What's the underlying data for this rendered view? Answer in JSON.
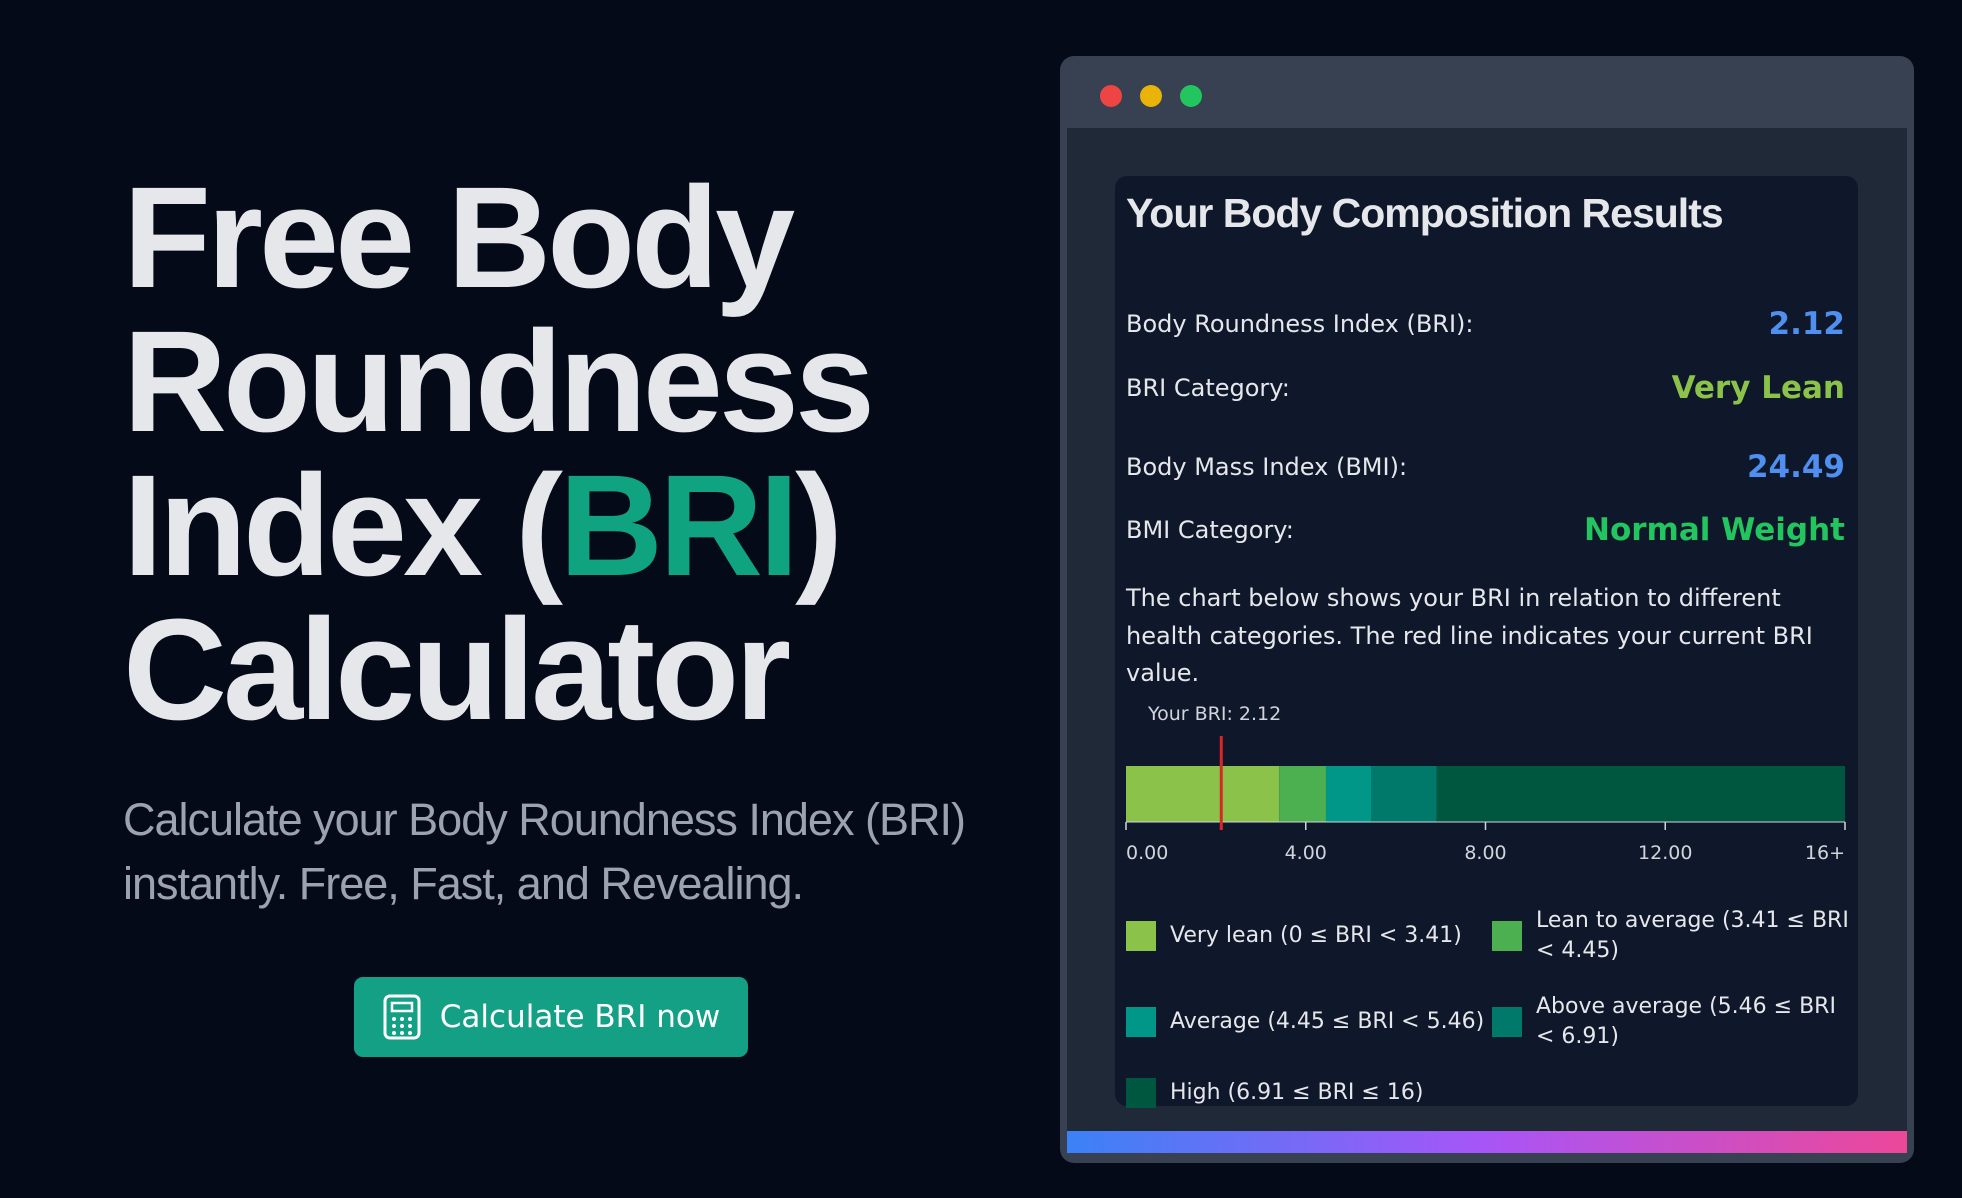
{
  "hero": {
    "title_parts": [
      "Free Body Roundness Index (",
      "BRI",
      ") Calculator"
    ],
    "subtitle": "Calculate your Body Roundness Index (BRI) instantly. Free, Fast, and Revealing.",
    "button": "Calculate BRI now"
  },
  "results": {
    "title": "Your Body Composition Results",
    "rows": [
      {
        "label": "Body Roundness Index (BRI):",
        "value": "2.12",
        "color": "#4f8ff0"
      },
      {
        "label": "BRI Category:",
        "value": "Very Lean",
        "color": "#8bc34a"
      },
      {
        "label": "Body Mass Index (BMI):",
        "value": "24.49",
        "color": "#4f8ff0"
      },
      {
        "label": "BMI Category:",
        "value": "Normal Weight",
        "color": "#22c55e"
      }
    ],
    "description": "The chart below shows your BRI in relation to different health categories. The red line indicates your current BRI value.",
    "chart_data": {
      "type": "range-bar",
      "marker": {
        "label": "Your BRI: 2.12",
        "value": 2.12,
        "color": "#dc2626"
      },
      "segments": [
        {
          "name": "Very lean (0 ≤ BRI < 3.41)",
          "from": 0,
          "to": 3.41,
          "color": "#8bc34a"
        },
        {
          "name": "Lean to average (3.41 ≤ BRI < 4.45)",
          "from": 3.41,
          "to": 4.45,
          "color": "#4caf50"
        },
        {
          "name": "Average (4.45 ≤ BRI < 5.46)",
          "from": 4.45,
          "to": 5.46,
          "color": "#009688"
        },
        {
          "name": "Above average (5.46 ≤ BRI < 6.91)",
          "from": 5.46,
          "to": 6.91,
          "color": "#00796b"
        },
        {
          "name": "High (6.91 ≤ BRI ≤ 16)",
          "from": 6.91,
          "to": 16,
          "color": "#00573f"
        }
      ],
      "xlim": [
        0,
        16
      ],
      "xticks": [
        {
          "value": 0,
          "label": "0.00"
        },
        {
          "value": 4,
          "label": "4.00"
        },
        {
          "value": 8,
          "label": "8.00"
        },
        {
          "value": 12,
          "label": "12.00"
        },
        {
          "value": 16,
          "label": "16+"
        }
      ]
    }
  }
}
